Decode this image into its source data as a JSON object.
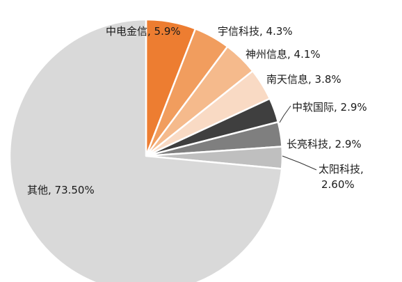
{
  "chart_data": {
    "type": "pie",
    "start": "top",
    "direction": "clockwise",
    "slices": [
      {
        "name": "中电金信",
        "value": 5.9,
        "label": "中电金信, 5.9%",
        "color": "#ed7d31"
      },
      {
        "name": "宇信科技",
        "value": 4.3,
        "label": "宇信科技, 4.3%",
        "color": "#f19d5e"
      },
      {
        "name": "神州信息",
        "value": 4.1,
        "label": "神州信息, 4.1%",
        "color": "#f5ba8c"
      },
      {
        "name": "南天信息",
        "value": 3.8,
        "label": "南天信息, 3.8%",
        "color": "#f9dac4"
      },
      {
        "name": "中软国际",
        "value": 2.9,
        "label": "中软国际, 2.9%",
        "color": "#3f3f3f"
      },
      {
        "name": "长亮科技",
        "value": 2.9,
        "label": "长亮科技, 2.9%",
        "color": "#7f7f7f"
      },
      {
        "name": "太阳科技",
        "value": 2.6,
        "label": "太阳科技,\n2.60%",
        "color": "#bfbfbf"
      },
      {
        "name": "其他",
        "value": 73.5,
        "label": "其他, 73.50%",
        "color": "#d9d9d9"
      }
    ]
  }
}
